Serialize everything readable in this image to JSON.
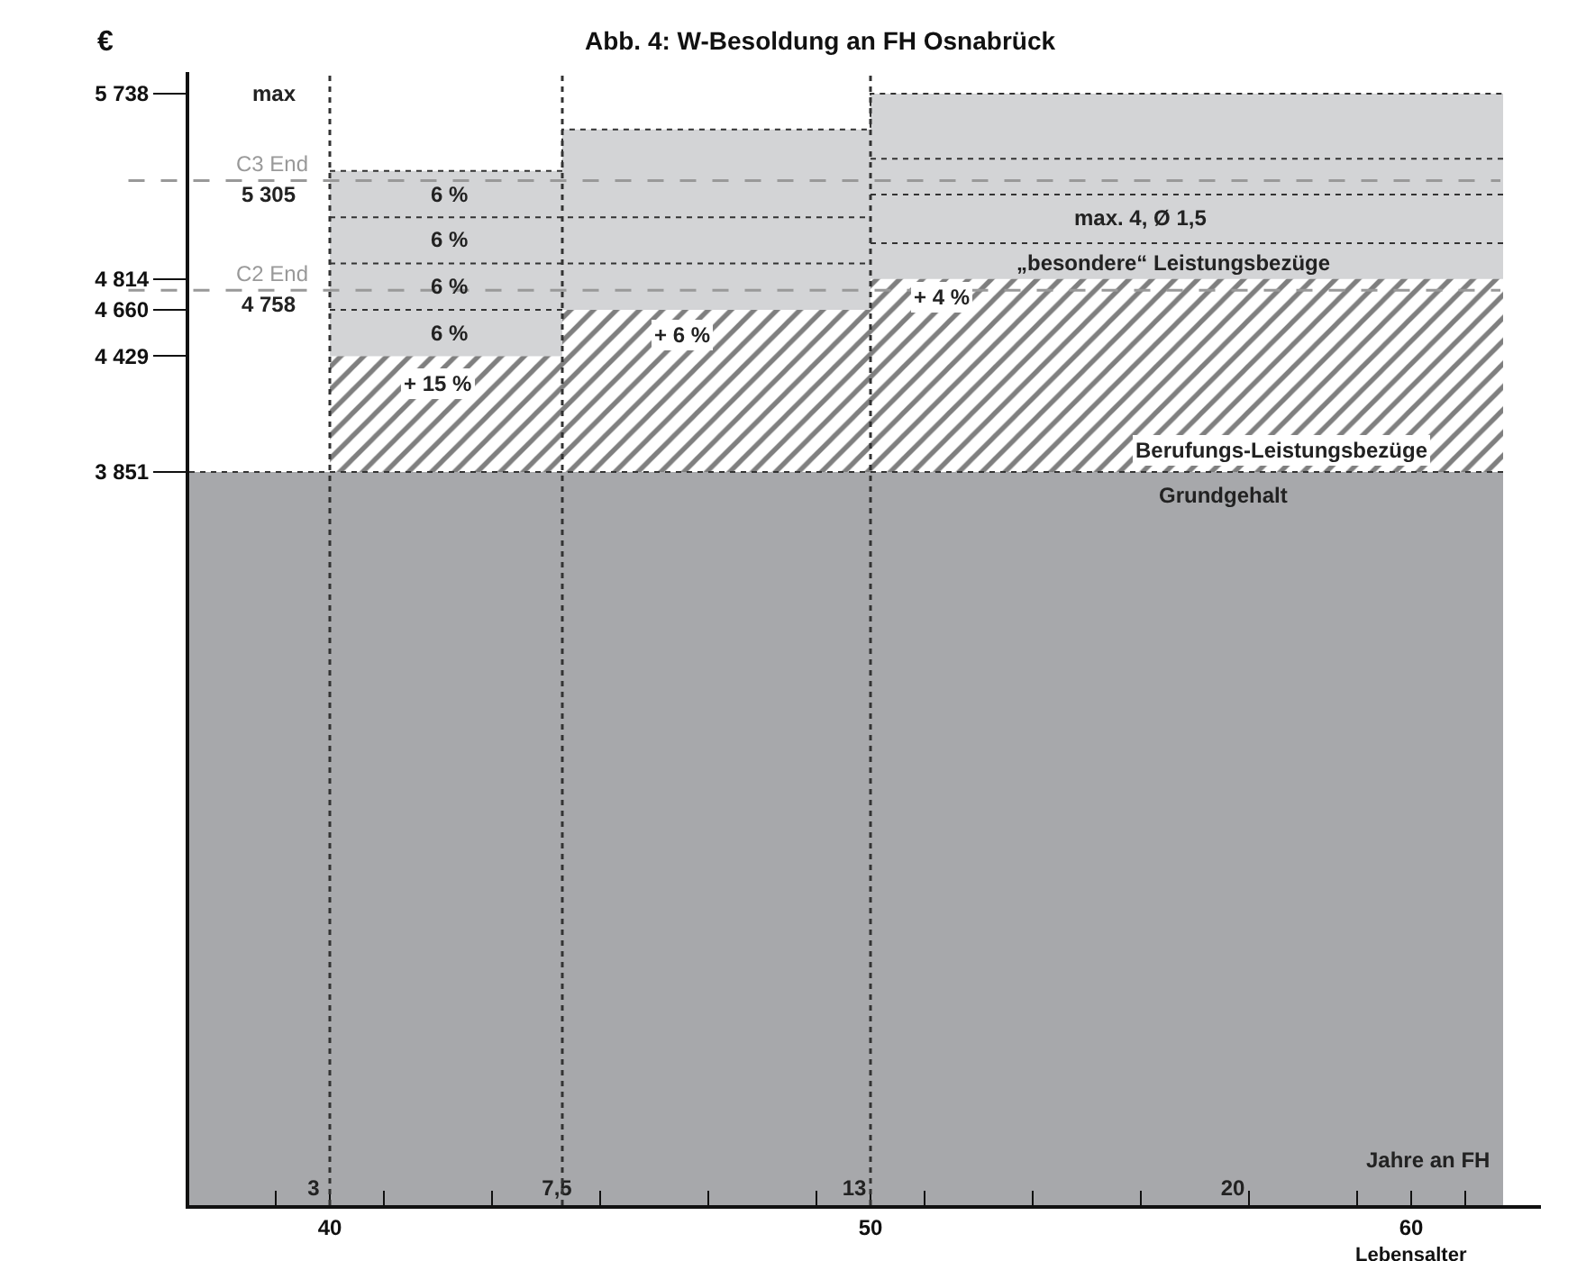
{
  "chart_data": {
    "type": "area",
    "title": "Abb. 4: W-Besoldung an FH Osnabrück",
    "xlabel": "Lebensalter",
    "ylabel": "€",
    "x2label": "Jahre an FH",
    "xlim": [
      37.4,
      62.4
    ],
    "x2lim": [
      0.7,
      25.7
    ],
    "ylim": [
      194,
      5846
    ],
    "xticks": [
      {
        "value": 39,
        "label": null
      },
      40,
      {
        "value": 41,
        "label": null
      },
      {
        "value": 43,
        "label": null
      },
      {
        "value": 45,
        "label": null
      },
      {
        "value": 47,
        "label": null
      },
      {
        "value": 49,
        "label": null
      },
      50,
      {
        "value": 51,
        "label": null
      },
      {
        "value": 53,
        "label": null
      },
      {
        "value": 55,
        "label": null
      },
      {
        "value": 57,
        "label": null
      },
      {
        "value": 59,
        "label": null
      },
      60,
      {
        "value": 61,
        "label": null
      }
    ],
    "x2ticks": [
      3,
      {
        "value": 7.5,
        "label": "7,5"
      },
      13,
      20
    ],
    "yticks": [
      {
        "value": 3851,
        "label": "3 851"
      },
      {
        "value": 4429,
        "label": "4 429"
      },
      {
        "value": 4660,
        "label": "4 660"
      },
      {
        "value": 4814,
        "label": "4 814"
      },
      {
        "value": 5738,
        "label": "5 738"
      }
    ],
    "series": [
      {
        "type": "area",
        "color": "#d3d4d6",
        "x": [
          40,
          44.3,
          44.3,
          50,
          50,
          61.7
        ],
        "values": [
          5353,
          5353,
          5560,
          5560,
          5738,
          5738
        ]
      },
      {
        "type": "area",
        "color": "#000000",
        "x": [
          40,
          44.3,
          44.3,
          50,
          50,
          61.7
        ],
        "values": [
          4429,
          4429,
          4660,
          4660,
          4814,
          4814
        ]
      },
      {
        "type": "area",
        "color": "#a7a8ab",
        "x": [
          37.4,
          61.7
        ],
        "values": [
          3851,
          3851
        ]
      },
      {
        "type": "line",
        "color": "#333333",
        "line_style": "dotted",
        "x": [
          40,
          44.3
        ],
        "values": [
          4660,
          4660
        ]
      },
      {
        "type": "line",
        "color": "#333333",
        "line_style": "dotted",
        "x": [
          40,
          50
        ],
        "values": [
          4891,
          4891
        ]
      },
      {
        "type": "line",
        "color": "#333333",
        "line_style": "dotted",
        "x": [
          40,
          50
        ],
        "values": [
          5122,
          5122
        ]
      },
      {
        "type": "line",
        "color": "#333333",
        "line_style": "dotted",
        "x": [
          50,
          61.7
        ],
        "values": [
          4992,
          4992
        ]
      },
      {
        "type": "line",
        "color": "#333333",
        "line_style": "dotted",
        "x": [
          50,
          61.7
        ],
        "values": [
          5235,
          5235
        ]
      },
      {
        "type": "line",
        "color": "#333333",
        "line_style": "dotted",
        "x": [
          50,
          61.7
        ],
        "values": [
          5414,
          5414
        ]
      }
    ],
    "ref_lines": [
      {
        "axis": "y",
        "value": 5305,
        "label": "C3 End",
        "color": "#999999",
        "line_style": "dashed"
      },
      {
        "axis": "y",
        "value": 4758,
        "label": "C2 End",
        "color": "#999999",
        "line_style": "dashed"
      },
      {
        "axis": "x",
        "value": 40,
        "color": "#333333",
        "line_style": "dotted"
      },
      {
        "axis": "x",
        "value": 44.3,
        "color": "#333333",
        "line_style": "dotted"
      },
      {
        "axis": "x",
        "value": 50,
        "color": "#333333",
        "line_style": "dotted"
      }
    ],
    "annotations": [
      "max",
      "5 305",
      "4 758",
      "6 %",
      "6 %",
      "6 %",
      "6 %",
      "+ 15 %",
      "+ 6 %",
      "+ 4 %",
      "max. 4, Ø 1,5",
      "„besondere“ Leistungsbezüge",
      "Berufungs-Leistungsbezüge",
      "Grundgehalt"
    ]
  }
}
